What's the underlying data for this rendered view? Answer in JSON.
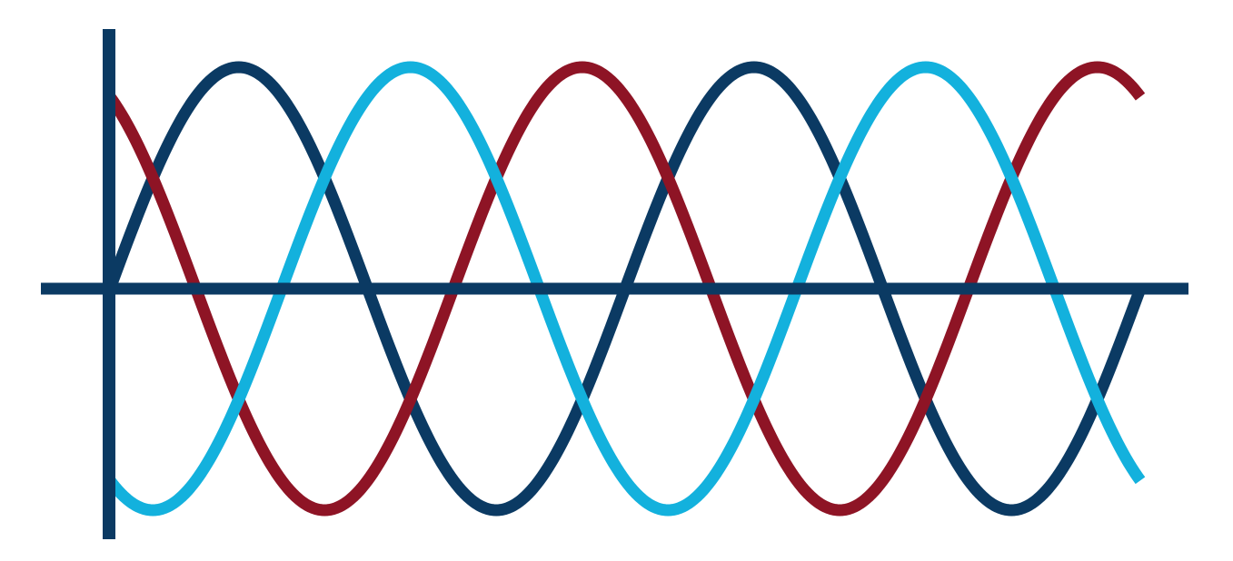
{
  "chart_data": {
    "type": "line",
    "title": "",
    "xlabel": "",
    "ylabel": "",
    "grid": false,
    "legend": "none",
    "xlim": [
      0,
      720
    ],
    "ylim": [
      -1.05,
      1.05
    ],
    "x_samples_deg": [
      0,
      720
    ],
    "series": [
      {
        "phase_deg": 0,
        "amplitude": 1,
        "color": "#0b3a63"
      },
      {
        "phase_deg": 240,
        "amplitude": 1,
        "color": "#8e1425"
      },
      {
        "phase_deg": 120,
        "amplitude": 1,
        "color": "#13b1dd"
      }
    ]
  },
  "colors": {
    "axis": "#0b3a63"
  }
}
